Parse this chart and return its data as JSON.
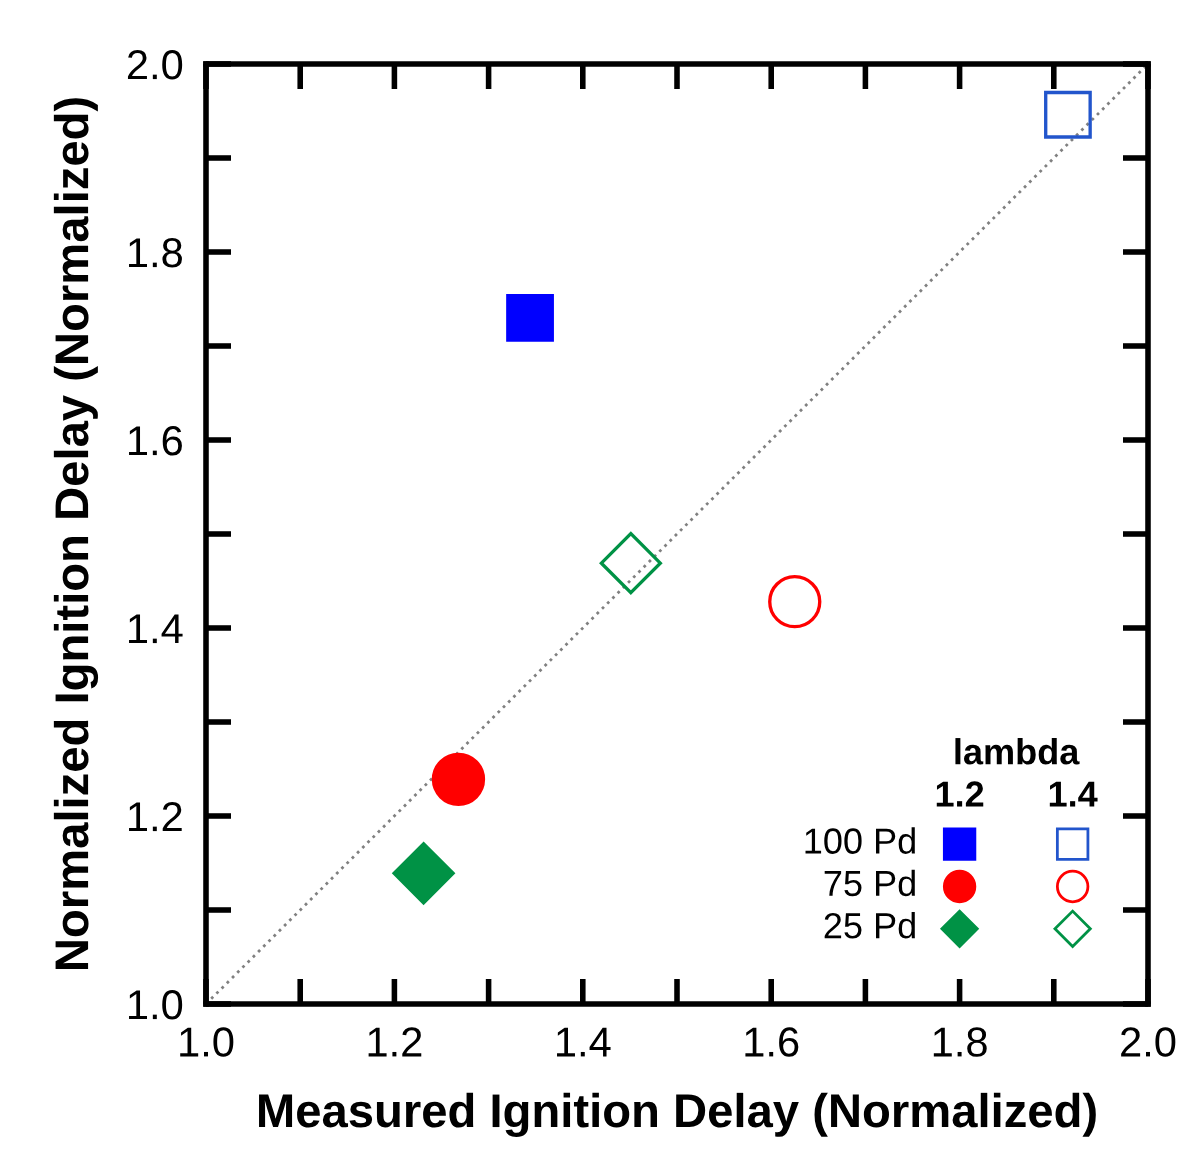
{
  "chart_data": {
    "type": "scatter",
    "xlabel": "Measured Ignition Delay (Normalized)",
    "ylabel": "Normalized Ignition Delay (Normalized)",
    "xlim": [
      1.0,
      2.0
    ],
    "ylim": [
      1.0,
      2.0
    ],
    "xticks": [
      {
        "value": 1.0,
        "label": "1.0"
      },
      {
        "value": 1.1,
        "label": null
      },
      {
        "value": 1.2,
        "label": "1.2"
      },
      {
        "value": 1.3,
        "label": null
      },
      {
        "value": 1.4,
        "label": "1.4"
      },
      {
        "value": 1.5,
        "label": null
      },
      {
        "value": 1.6,
        "label": "1.6"
      },
      {
        "value": 1.7,
        "label": null
      },
      {
        "value": 1.8,
        "label": "1.8"
      },
      {
        "value": 1.9,
        "label": null
      },
      {
        "value": 2.0,
        "label": "2.0"
      }
    ],
    "yticks": [
      {
        "value": 1.0,
        "label": "1.0"
      },
      {
        "value": 1.1,
        "label": null
      },
      {
        "value": 1.2,
        "label": "1.2"
      },
      {
        "value": 1.3,
        "label": null
      },
      {
        "value": 1.4,
        "label": "1.4"
      },
      {
        "value": 1.5,
        "label": null
      },
      {
        "value": 1.6,
        "label": "1.6"
      },
      {
        "value": 1.7,
        "label": null
      },
      {
        "value": 1.8,
        "label": "1.8"
      },
      {
        "value": 1.9,
        "label": null
      },
      {
        "value": 2.0,
        "label": "2.0"
      }
    ],
    "grid": false,
    "legend": "bottom right",
    "legend_title": "lambda",
    "annotations": [
      "1.2",
      "1.4"
    ],
    "series": [
      {
        "type": "line",
        "x": [
          1.0,
          2.0
        ],
        "values": [
          1.0,
          2.0
        ],
        "color": "#808080",
        "line_style": "dotted",
        "marker": "none"
      },
      {
        "name": "100 Pd",
        "marker": "square",
        "color": "#0000ff",
        "x": [
          1.344
        ],
        "values": [
          1.73
        ]
      },
      {
        "marker": "square",
        "color": "#2255cc",
        "x": [
          1.915
        ],
        "values": [
          1.946
        ]
      },
      {
        "name": "75 Pd",
        "marker": "circle",
        "color": "#ff0000",
        "x": [
          1.268
        ],
        "values": [
          1.239
        ]
      },
      {
        "marker": "circle",
        "color": "#ff0000",
        "x": [
          1.625
        ],
        "values": [
          1.428
        ]
      },
      {
        "name": "25 Pd",
        "marker": "diamond",
        "color": "#009245",
        "x": [
          1.231
        ],
        "values": [
          1.139
        ]
      },
      {
        "marker": "diamond",
        "color": "#009245",
        "x": [
          1.451
        ],
        "values": [
          1.469
        ]
      }
    ]
  }
}
